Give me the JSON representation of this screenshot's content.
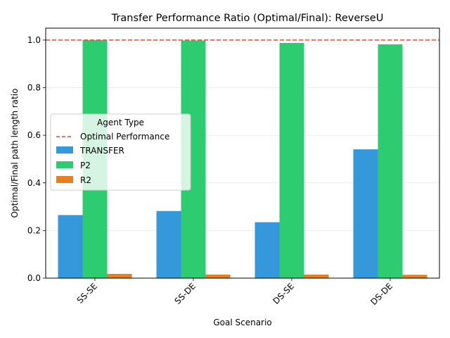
{
  "chart_data": {
    "type": "bar",
    "title": "Transfer Performance Ratio (Optimal/Final): ReverseU",
    "xlabel": "Goal Scenario",
    "ylabel": "Optimal/Final path length ratio",
    "categories": [
      "SS-SE",
      "SS-DE",
      "DS-SE",
      "DS-DE"
    ],
    "ylim": [
      0,
      1.05
    ],
    "yticks": [
      "0.0",
      "0.2",
      "0.4",
      "0.6",
      "0.8",
      "1.0"
    ],
    "grid": true,
    "legend": {
      "title": "Agent Type",
      "placement": "center-left",
      "reference_label": "Optimal Performance"
    },
    "reference_line": {
      "value": 1.0,
      "color": "#e74c3c",
      "style": "dashed"
    },
    "series": [
      {
        "name": "TRANSFER",
        "color": "#3498db",
        "values": [
          0.265,
          0.282,
          0.235,
          0.541
        ]
      },
      {
        "name": "P2",
        "color": "#2ecc71",
        "values": [
          1.0,
          0.998,
          0.988,
          0.982
        ]
      },
      {
        "name": "R2",
        "color": "#e67e22",
        "values": [
          0.018,
          0.015,
          0.015,
          0.014
        ]
      }
    ]
  }
}
